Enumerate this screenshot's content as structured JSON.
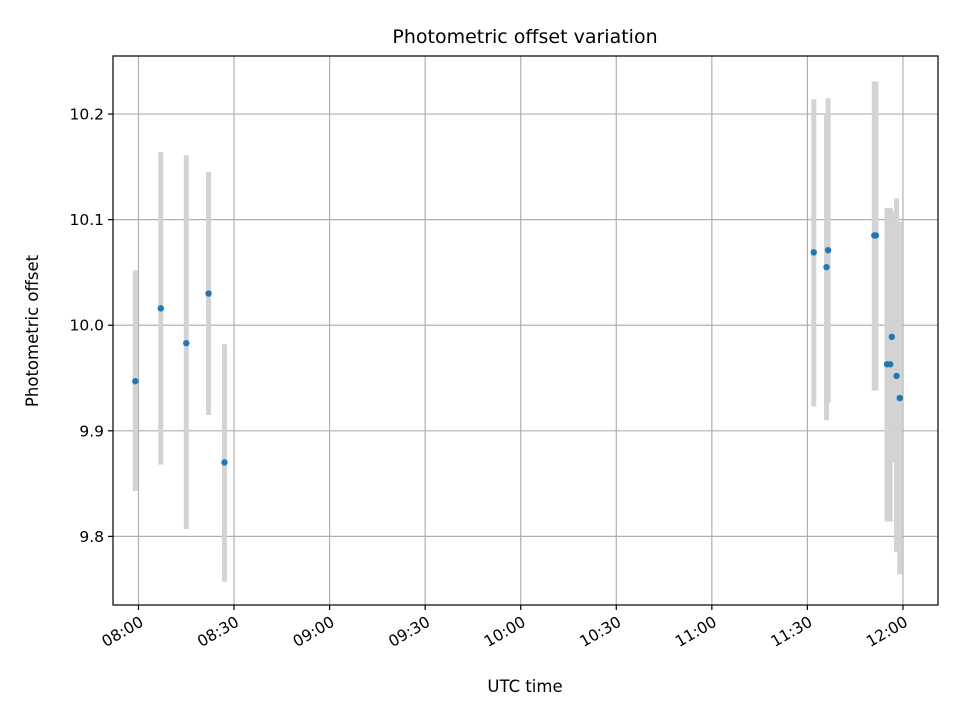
{
  "chart_data": {
    "type": "scatter",
    "title": "Photometric offset variation",
    "xlabel": "UTC time",
    "ylabel": "Photometric offset",
    "xlim": [
      "07:52",
      "12:11"
    ],
    "ylim": [
      9.735,
      10.255
    ],
    "x_ticks": [
      "08:00",
      "08:30",
      "09:00",
      "09:30",
      "10:00",
      "10:30",
      "11:00",
      "11:30",
      "12:00"
    ],
    "y_ticks": [
      9.8,
      9.9,
      10.0,
      10.1,
      10.2
    ],
    "y_tick_labels": [
      "9.8",
      "9.9",
      "10.0",
      "10.1",
      "10.2"
    ],
    "grid": true,
    "marker_color": "#1f77b4",
    "errorbar_color": "#d3d3d3",
    "points": [
      {
        "x": "07:59",
        "y": 9.947,
        "yerr_low": 9.843,
        "yerr_high": 10.052
      },
      {
        "x": "08:07",
        "y": 10.016,
        "yerr_low": 9.868,
        "yerr_high": 10.164
      },
      {
        "x": "08:15",
        "y": 9.983,
        "yerr_low": 9.807,
        "yerr_high": 10.161
      },
      {
        "x": "08:22",
        "y": 10.03,
        "yerr_low": 9.915,
        "yerr_high": 10.145
      },
      {
        "x": "08:27",
        "y": 9.87,
        "yerr_low": 9.757,
        "yerr_high": 9.982
      },
      {
        "x": "11:32",
        "y": 10.069,
        "yerr_low": 9.923,
        "yerr_high": 10.214
      },
      {
        "x": "11:36",
        "y": 10.055,
        "yerr_low": 9.91,
        "yerr_high": 10.2
      },
      {
        "x": "11:36.5",
        "y": 10.071,
        "yerr_low": 9.926,
        "yerr_high": 10.215
      },
      {
        "x": "11:51",
        "y": 10.085,
        "yerr_low": 9.938,
        "yerr_high": 10.231
      },
      {
        "x": "11:51.5",
        "y": 10.085,
        "yerr_low": 9.938,
        "yerr_high": 10.231
      },
      {
        "x": "11:55",
        "y": 9.963,
        "yerr_low": 9.814,
        "yerr_high": 10.111
      },
      {
        "x": "11:56",
        "y": 9.963,
        "yerr_low": 9.814,
        "yerr_high": 10.111
      },
      {
        "x": "11:56.5",
        "y": 9.989,
        "yerr_low": 9.87,
        "yerr_high": 10.108
      },
      {
        "x": "11:58",
        "y": 9.952,
        "yerr_low": 9.785,
        "yerr_high": 10.12
      },
      {
        "x": "11:59",
        "y": 9.931,
        "yerr_low": 9.764,
        "yerr_high": 10.098
      }
    ]
  }
}
